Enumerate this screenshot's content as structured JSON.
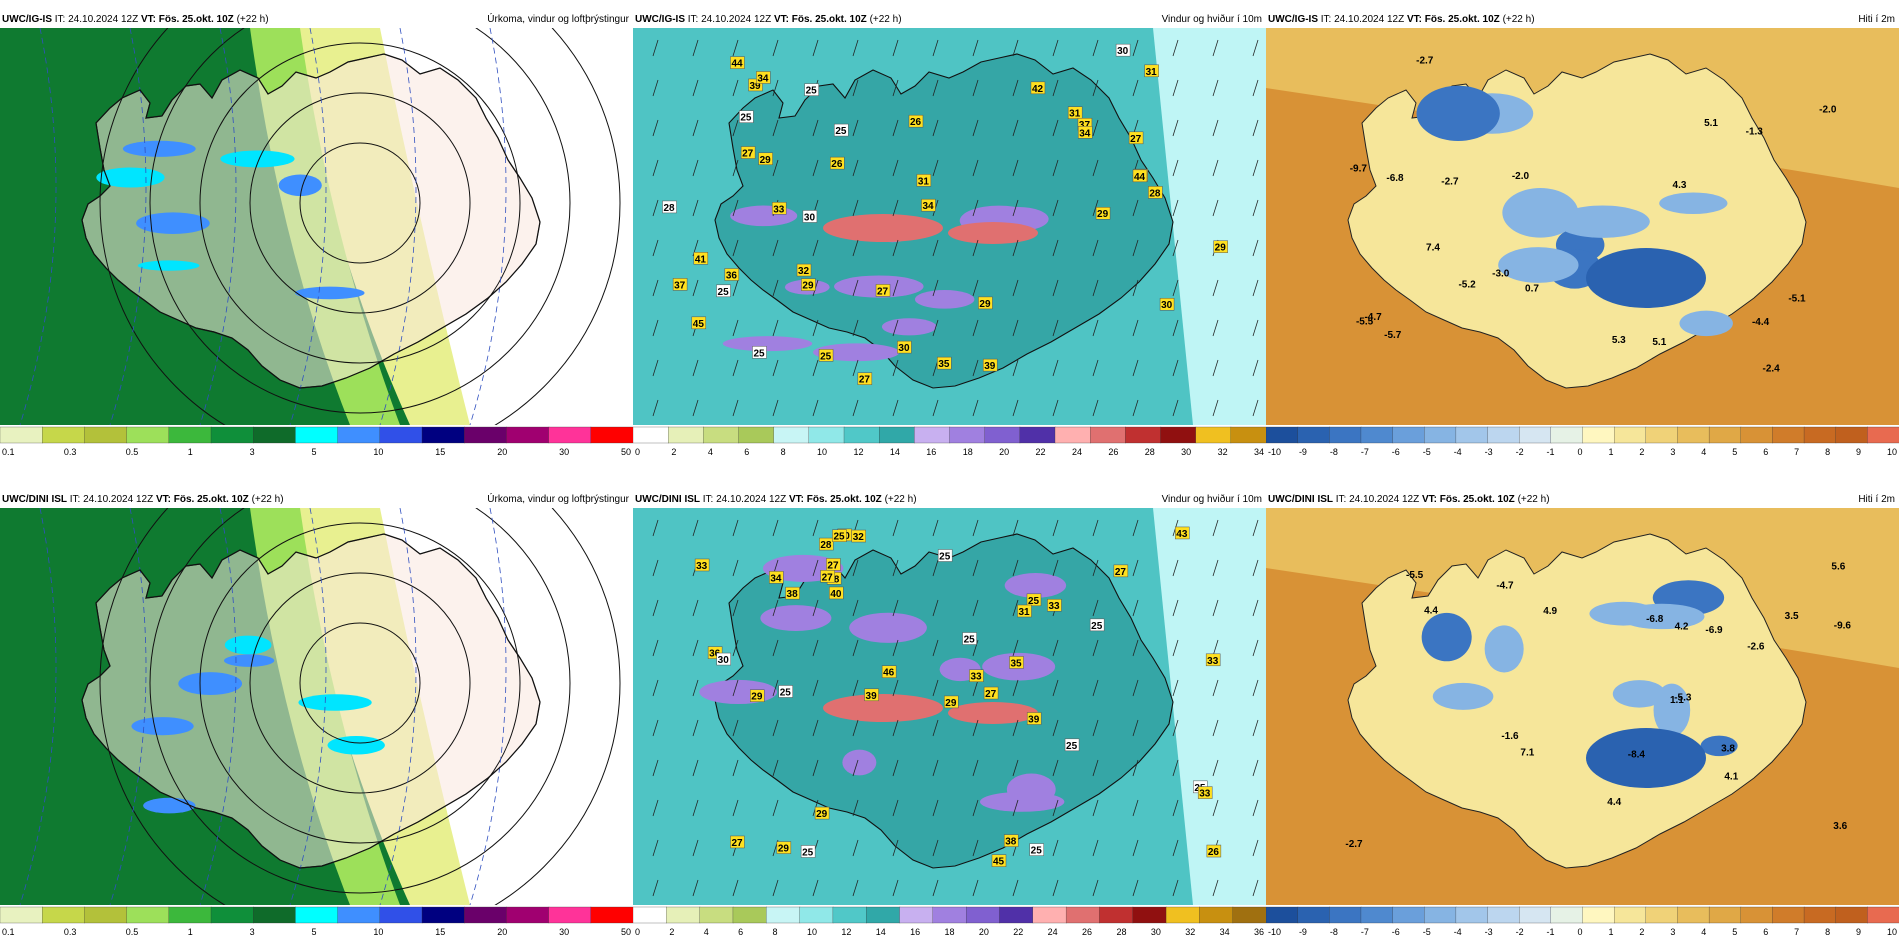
{
  "panels": [
    {
      "id": "p1",
      "kind": "precip",
      "model": "UWC/IG-IS",
      "it_label": "IT:",
      "it_value": "24.10.2024 12Z",
      "vt_label": "VT:",
      "vt_value": "Fös. 25.okt. 10Z",
      "lead": "(+22 h)",
      "title": "Úrkoma, vindur og loftþrýstingur",
      "labels": [],
      "colorbar": {
        "colors": [
          "#e8f2c0",
          "#c6d74a",
          "#b3c13a",
          "#9de05a",
          "#3cb83c",
          "#0f8f3a",
          "#0f6b2a",
          "#00ffff",
          "#3f8fff",
          "#3050e8",
          "#000080",
          "#6a006a",
          "#a00070",
          "#ff3399",
          "#ff0000"
        ],
        "ticks": [
          "0.1",
          "0.3",
          "0.5",
          "1",
          "3",
          "5",
          "10",
          "15",
          "20",
          "30",
          "50"
        ]
      }
    },
    {
      "id": "p2",
      "kind": "wind",
      "model": "UWC/IG-IS",
      "it_label": "IT:",
      "it_value": "24.10.2024 12Z",
      "vt_label": "VT:",
      "vt_value": "Fös. 25.okt. 10Z",
      "lead": "(+22 h)",
      "title": "Vindur og hviður í 10m",
      "labels": [
        {
          "t": "29",
          "k": "y"
        },
        {
          "t": "25",
          "k": "w"
        },
        {
          "t": "32",
          "k": "y"
        },
        {
          "t": "29",
          "k": "y"
        },
        {
          "t": "27",
          "k": "y"
        },
        {
          "t": "30",
          "k": "y"
        },
        {
          "t": "30",
          "k": "y"
        },
        {
          "t": "29",
          "k": "y"
        },
        {
          "t": "31",
          "k": "y"
        },
        {
          "t": "27",
          "k": "y"
        },
        {
          "t": "28",
          "k": "y"
        },
        {
          "t": "35",
          "k": "y"
        },
        {
          "t": "27",
          "k": "y"
        },
        {
          "t": "31",
          "k": "y"
        },
        {
          "t": "36",
          "k": "y"
        },
        {
          "t": "26",
          "k": "y"
        },
        {
          "t": "39",
          "k": "y"
        },
        {
          "t": "41",
          "k": "y"
        },
        {
          "t": "37",
          "k": "y"
        },
        {
          "t": "34",
          "k": "y"
        },
        {
          "t": "42",
          "k": "y"
        },
        {
          "t": "44",
          "k": "y"
        },
        {
          "t": "29",
          "k": "y"
        },
        {
          "t": "30",
          "k": "w"
        },
        {
          "t": "25",
          "k": "w"
        },
        {
          "t": "45",
          "k": "y"
        },
        {
          "t": "34",
          "k": "y"
        },
        {
          "t": "44",
          "k": "y"
        },
        {
          "t": "28",
          "k": "w"
        },
        {
          "t": "37",
          "k": "y"
        },
        {
          "t": "29",
          "k": "y"
        },
        {
          "t": "25",
          "k": "w"
        },
        {
          "t": "25",
          "k": "w"
        },
        {
          "t": "30",
          "k": "w"
        },
        {
          "t": "28",
          "k": "y"
        },
        {
          "t": "33",
          "k": "y"
        },
        {
          "t": "27",
          "k": "y"
        },
        {
          "t": "31",
          "k": "y"
        },
        {
          "t": "34",
          "k": "y"
        },
        {
          "t": "39",
          "k": "y"
        },
        {
          "t": "25",
          "k": "w"
        },
        {
          "t": "25",
          "k": "y"
        },
        {
          "t": "26",
          "k": "y"
        }
      ],
      "colorbar": {
        "colors": [
          "#ffffff",
          "#e6f0b8",
          "#c8dd80",
          "#a9c95a",
          "#c8f5f5",
          "#90e8e8",
          "#50c8c8",
          "#30a8a8",
          "#c8b0f0",
          "#a080e0",
          "#8060d0",
          "#5030a8",
          "#ffb0b0",
          "#e07070",
          "#c03030",
          "#901010",
          "#f0c020",
          "#c89010"
        ],
        "ticks": [
          "0",
          "2",
          "4",
          "6",
          "8",
          "10",
          "12",
          "14",
          "16",
          "18",
          "20",
          "22",
          "24",
          "26",
          "28",
          "30",
          "32",
          "34"
        ]
      }
    },
    {
      "id": "p3",
      "kind": "temp",
      "model": "UWC/IG-IS",
      "it_label": "IT:",
      "it_value": "24.10.2024 12Z",
      "vt_label": "VT:",
      "vt_value": "Fös. 25.okt. 10Z",
      "lead": "(+22 h)",
      "title": "Hiti í 2m",
      "labels": [
        {
          "t": "-2.0"
        },
        {
          "t": "-2.0"
        },
        {
          "t": "-2.4"
        },
        {
          "t": "-2.7"
        },
        {
          "t": "5.1"
        },
        {
          "t": "-5.2"
        },
        {
          "t": "-4.4"
        },
        {
          "t": "4.3"
        },
        {
          "t": "5.3"
        },
        {
          "t": "-4.7"
        },
        {
          "t": "-1.3"
        },
        {
          "t": "-5.5"
        },
        {
          "t": "-3.0"
        },
        {
          "t": "0.7"
        },
        {
          "t": "-5.7"
        },
        {
          "t": "-5.1"
        },
        {
          "t": "5.1"
        },
        {
          "t": "-9.7"
        },
        {
          "t": "-6.8"
        },
        {
          "t": "-2.7"
        },
        {
          "t": "7.4"
        }
      ],
      "colorbar": {
        "colors": [
          "#1c4f9c",
          "#2a62b0",
          "#3b75c2",
          "#4f89cf",
          "#6a9fdb",
          "#86b4e3",
          "#a2c6ea",
          "#bcd6ef",
          "#d6e6f2",
          "#e6f2e6",
          "#fff7c0",
          "#f6e69a",
          "#f0d278",
          "#e8bd5c",
          "#e0a846",
          "#d89236",
          "#d07c2a",
          "#c86a22",
          "#c0601e",
          "#e86a50"
        ],
        "ticks": [
          "-10",
          "-9",
          "-8",
          "-7",
          "-6",
          "-5",
          "-4",
          "-3",
          "-2",
          "-1",
          "0",
          "1",
          "2",
          "3",
          "4",
          "5",
          "6",
          "7",
          "8",
          "9",
          "10"
        ]
      }
    },
    {
      "id": "p4",
      "kind": "precip",
      "model": "UWC/DINI ISL",
      "it_label": "IT:",
      "it_value": "24.10.2024 12Z",
      "vt_label": "VT:",
      "vt_value": "Fös. 25.okt. 10Z",
      "lead": "(+22 h)",
      "title": "Úrkoma, vindur og loftþrýstingur",
      "labels": [],
      "colorbar": {
        "colors": [
          "#e8f2c0",
          "#c6d74a",
          "#b3c13a",
          "#9de05a",
          "#3cb83c",
          "#0f8f3a",
          "#0f6b2a",
          "#00ffff",
          "#3f8fff",
          "#3050e8",
          "#000080",
          "#6a006a",
          "#a00070",
          "#ff3399",
          "#ff0000"
        ],
        "ticks": [
          "0.1",
          "0.3",
          "0.5",
          "1",
          "3",
          "5",
          "10",
          "15",
          "20",
          "30",
          "50"
        ]
      }
    },
    {
      "id": "p5",
      "kind": "wind",
      "model": "UWC/DINI ISL",
      "it_label": "IT:",
      "it_value": "24.10.2024 12Z",
      "vt_label": "VT:",
      "vt_value": "Fös. 25.okt. 10Z",
      "lead": "(+22 h)",
      "title": "Vindur og hviður í 10m",
      "labels": [
        {
          "t": "29",
          "k": "y"
        },
        {
          "t": "30",
          "k": "y"
        },
        {
          "t": "25",
          "k": "w"
        },
        {
          "t": "33",
          "k": "y"
        },
        {
          "t": "25",
          "k": "w"
        },
        {
          "t": "28",
          "k": "y"
        },
        {
          "t": "29",
          "k": "y"
        },
        {
          "t": "32",
          "k": "y"
        },
        {
          "t": "25",
          "k": "y"
        },
        {
          "t": "27",
          "k": "y"
        },
        {
          "t": "29",
          "k": "y"
        },
        {
          "t": "25",
          "k": "y"
        },
        {
          "t": "36",
          "k": "y"
        },
        {
          "t": "33",
          "k": "y"
        },
        {
          "t": "25",
          "k": "w"
        },
        {
          "t": "26",
          "k": "y"
        },
        {
          "t": "27",
          "k": "y"
        },
        {
          "t": "39",
          "k": "y"
        },
        {
          "t": "40",
          "k": "y"
        },
        {
          "t": "38",
          "k": "y"
        },
        {
          "t": "33",
          "k": "y"
        },
        {
          "t": "46",
          "k": "y"
        },
        {
          "t": "28",
          "k": "y"
        },
        {
          "t": "25",
          "k": "w"
        },
        {
          "t": "45",
          "k": "y"
        },
        {
          "t": "34",
          "k": "y"
        },
        {
          "t": "43",
          "k": "y"
        },
        {
          "t": "38",
          "k": "y"
        },
        {
          "t": "31",
          "k": "y"
        },
        {
          "t": "25",
          "k": "w"
        },
        {
          "t": "35",
          "k": "y"
        },
        {
          "t": "33",
          "k": "y"
        },
        {
          "t": "29",
          "k": "y"
        },
        {
          "t": "27",
          "k": "y"
        },
        {
          "t": "25",
          "k": "w"
        },
        {
          "t": "30",
          "k": "w"
        },
        {
          "t": "33",
          "k": "y"
        },
        {
          "t": "27",
          "k": "y"
        },
        {
          "t": "39",
          "k": "y"
        },
        {
          "t": "25",
          "k": "w"
        },
        {
          "t": "25",
          "k": "w"
        },
        {
          "t": "27",
          "k": "y"
        }
      ],
      "colorbar": {
        "colors": [
          "#ffffff",
          "#e6f0b8",
          "#c8dd80",
          "#a9c95a",
          "#c8f5f5",
          "#90e8e8",
          "#50c8c8",
          "#30a8a8",
          "#c8b0f0",
          "#a080e0",
          "#8060d0",
          "#5030a8",
          "#ffb0b0",
          "#e07070",
          "#c03030",
          "#901010",
          "#f0c020",
          "#c89010",
          "#a07010"
        ],
        "ticks": [
          "0",
          "2",
          "4",
          "6",
          "8",
          "10",
          "12",
          "14",
          "16",
          "18",
          "20",
          "22",
          "24",
          "26",
          "28",
          "30",
          "32",
          "34",
          "36"
        ]
      }
    },
    {
      "id": "p6",
      "kind": "temp",
      "model": "UWC/DINI ISL",
      "it_label": "IT:",
      "it_value": "24.10.2024 12Z",
      "vt_label": "VT:",
      "vt_value": "Fös. 25.okt. 10Z",
      "lead": "(+22 h)",
      "title": "Hiti í 2m",
      "labels": [
        {
          "t": "3.6"
        },
        {
          "t": "4.4"
        },
        {
          "t": "3.5"
        },
        {
          "t": "-4.7"
        },
        {
          "t": "3.8"
        },
        {
          "t": "-5.5"
        },
        {
          "t": "4.2"
        },
        {
          "t": "4.1"
        },
        {
          "t": "5.6"
        },
        {
          "t": "-1.6"
        },
        {
          "t": "4.4"
        },
        {
          "t": "-5.3"
        },
        {
          "t": "1.1"
        },
        {
          "t": "4.9"
        },
        {
          "t": "-8.4"
        },
        {
          "t": "-9.6"
        },
        {
          "t": "-6.9"
        },
        {
          "t": "-2.7"
        },
        {
          "t": "-6.8"
        },
        {
          "t": "-2.6"
        },
        {
          "t": "7.1"
        }
      ],
      "colorbar": {
        "colors": [
          "#1c4f9c",
          "#2a62b0",
          "#3b75c2",
          "#4f89cf",
          "#6a9fdb",
          "#86b4e3",
          "#a2c6ea",
          "#bcd6ef",
          "#d6e6f2",
          "#e6f2e6",
          "#fff7c0",
          "#f6e69a",
          "#f0d278",
          "#e8bd5c",
          "#e0a846",
          "#d89236",
          "#d07c2a",
          "#c86a22",
          "#c0601e",
          "#e86a50"
        ],
        "ticks": [
          "-10",
          "-9",
          "-8",
          "-7",
          "-6",
          "-5",
          "-4",
          "-3",
          "-2",
          "-1",
          "0",
          "1",
          "2",
          "3",
          "4",
          "5",
          "6",
          "7",
          "8",
          "9",
          "10"
        ]
      }
    }
  ]
}
